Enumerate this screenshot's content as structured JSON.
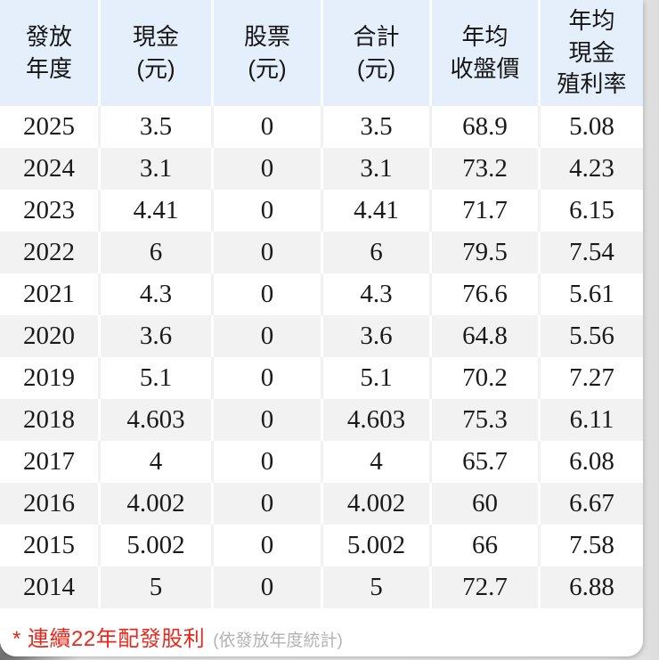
{
  "card": {
    "footnote": {
      "highlight": "* 連續22年配發股利",
      "note": "(依發放年度統計)"
    }
  },
  "chart_data": {
    "type": "table",
    "columns": [
      "發放年度",
      "現金(元)",
      "股票(元)",
      "合計(元)",
      "年均收盤價",
      "年均現金殖利率"
    ],
    "header_display": [
      "發放\n年度",
      "現金\n(元)",
      "股票\n(元)",
      "合計\n(元)",
      "年均\n收盤價",
      "年均\n現金\n殖利率"
    ],
    "rows": [
      [
        "2025",
        "3.5",
        "0",
        "3.5",
        "68.9",
        "5.08"
      ],
      [
        "2024",
        "3.1",
        "0",
        "3.1",
        "73.2",
        "4.23"
      ],
      [
        "2023",
        "4.41",
        "0",
        "4.41",
        "71.7",
        "6.15"
      ],
      [
        "2022",
        "6",
        "0",
        "6",
        "79.5",
        "7.54"
      ],
      [
        "2021",
        "4.3",
        "0",
        "4.3",
        "76.6",
        "5.61"
      ],
      [
        "2020",
        "3.6",
        "0",
        "3.6",
        "64.8",
        "5.56"
      ],
      [
        "2019",
        "5.1",
        "0",
        "5.1",
        "70.2",
        "7.27"
      ],
      [
        "2018",
        "4.603",
        "0",
        "4.603",
        "75.3",
        "6.11"
      ],
      [
        "2017",
        "4",
        "0",
        "4",
        "65.7",
        "6.08"
      ],
      [
        "2016",
        "4.002",
        "0",
        "4.002",
        "60",
        "6.67"
      ],
      [
        "2015",
        "5.002",
        "0",
        "5.002",
        "66",
        "7.58"
      ],
      [
        "2014",
        "5",
        "0",
        "5",
        "72.7",
        "6.88"
      ]
    ],
    "column_keys": [
      "year",
      "cash",
      "stock",
      "total",
      "avg_close_price",
      "cash_yield"
    ],
    "footnote": "* 連續22年配發股利 (依發放年度統計)"
  },
  "colors": {
    "header_bg": "#e4effb",
    "stripe": "#f2f2f2",
    "accent_red": "#e7291d",
    "note_gray": "#b3b3b3"
  }
}
